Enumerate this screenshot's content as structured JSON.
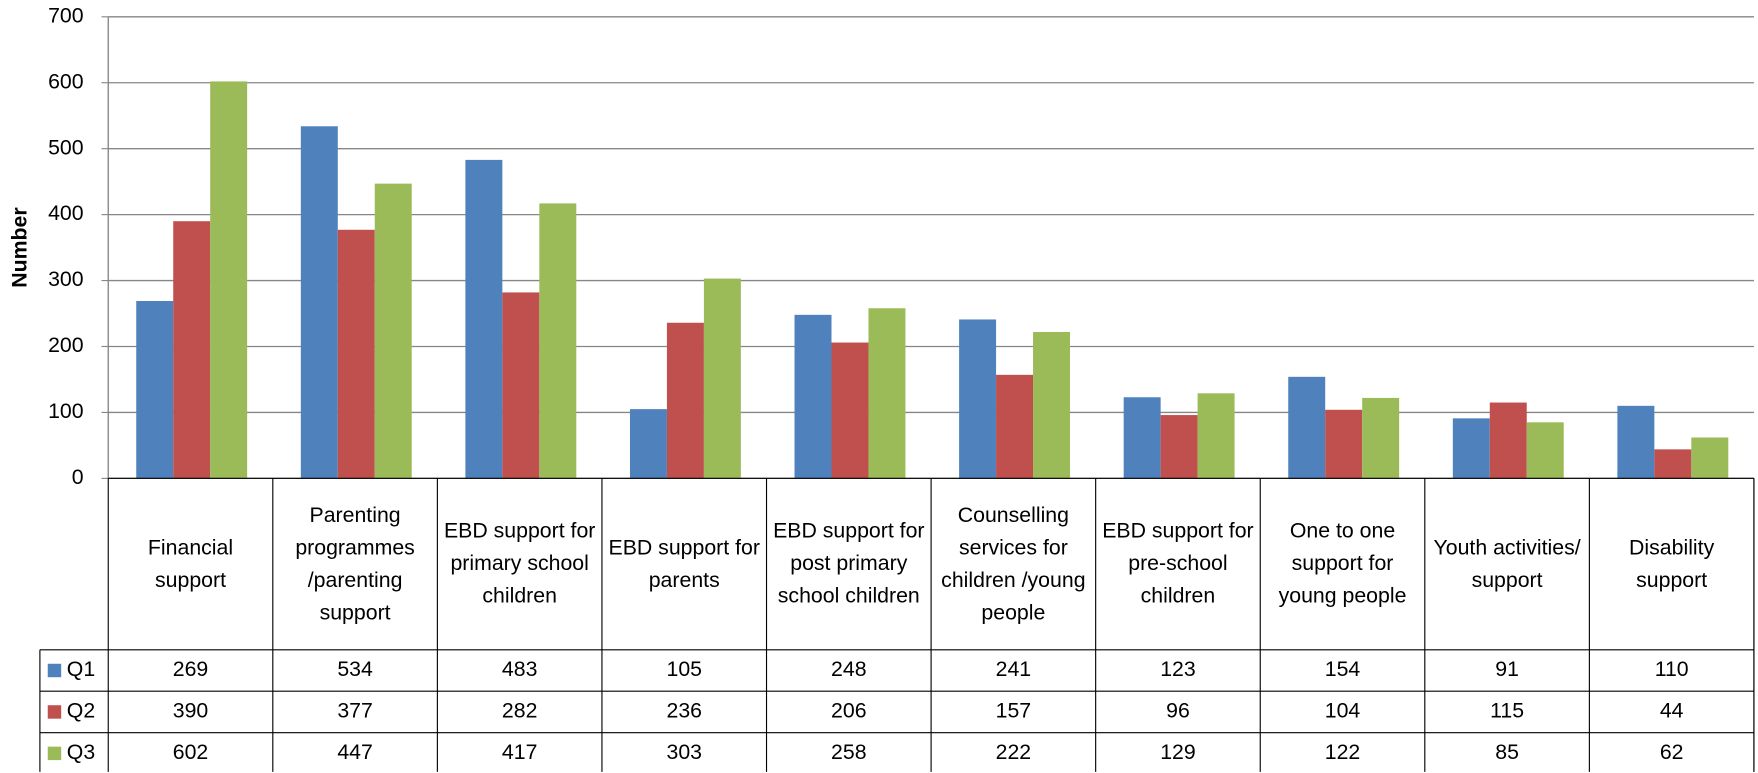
{
  "chart_data": {
    "type": "bar",
    "y_label": "Number",
    "categories": [
      "Financial support",
      "Parenting programmes /parenting support",
      "EBD support for primary school children",
      "EBD support for parents",
      "EBD support for post primary school children",
      "Counselling services for children /young people",
      "EBD support for pre-school children",
      "One to one support for young people",
      "Youth activities/ support",
      "Disability support"
    ],
    "series": [
      {
        "name": "Q1",
        "color": "#4f81bd",
        "values": [
          269,
          534,
          483,
          105,
          248,
          241,
          123,
          154,
          91,
          110
        ]
      },
      {
        "name": "Q2",
        "color": "#c0504d",
        "values": [
          390,
          377,
          282,
          236,
          206,
          157,
          96,
          104,
          115,
          44
        ]
      },
      {
        "name": "Q3",
        "color": "#9bbb59",
        "values": [
          602,
          447,
          417,
          303,
          258,
          222,
          129,
          122,
          85,
          62
        ]
      }
    ],
    "ylim": [
      0,
      700
    ],
    "yticks": [
      0,
      100,
      200,
      300,
      400,
      500,
      600,
      700
    ],
    "grid": true
  }
}
